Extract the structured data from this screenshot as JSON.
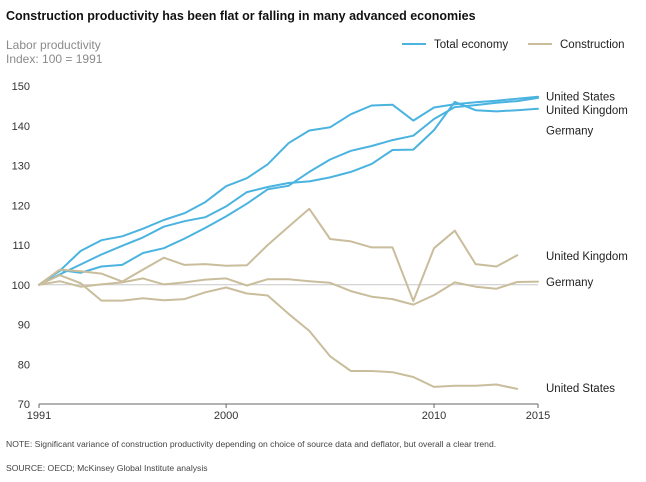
{
  "title": "Construction productivity has been flat or falling in many advanced economies",
  "y_axis_label": "Labor productivity",
  "y_axis_sublabel": "Index: 100 = 1991",
  "note": "NOTE: Significant variance of construction productivity depending on choice of source data and deflator, but overall a clear trend.",
  "source": "SOURCE: OECD; McKinsey Global Institute analysis",
  "colors": {
    "total_economy": "#4ab3e0",
    "construction": "#c9bd9c",
    "baseline": "#c8c8c8",
    "axis": "#666666"
  },
  "chart_data": {
    "type": "line",
    "xlim": [
      1991,
      2015
    ],
    "ylim": [
      70,
      150
    ],
    "x_ticks": [
      1991,
      2000,
      2010,
      2015
    ],
    "y_ticks": [
      70,
      80,
      90,
      100,
      110,
      120,
      130,
      140,
      150
    ],
    "legend": [
      {
        "label": "Total economy",
        "group": "total_economy"
      },
      {
        "label": "Construction",
        "group": "construction"
      }
    ],
    "legend_position": "top-right",
    "series": [
      {
        "name": "United States",
        "group": "total_economy",
        "x": [
          1991,
          1992,
          1993,
          1994,
          1995,
          1996,
          1997,
          1998,
          1999,
          2000,
          2001,
          2002,
          2003,
          2004,
          2005,
          2006,
          2007,
          2008,
          2009,
          2010,
          2011,
          2012,
          2013,
          2014,
          2015
        ],
        "y": [
          100,
          103.5,
          108.5,
          111.2,
          112.2,
          114.1,
          116.3,
          118.0,
          120.8,
          124.8,
          126.8,
          130.3,
          135.6,
          138.8,
          139.6,
          142.9,
          145.1,
          145.3,
          141.3,
          144.6,
          145.4,
          145.9,
          146.3,
          146.8,
          147.3
        ]
      },
      {
        "name": "United Kingdom",
        "group": "total_economy",
        "x": [
          1991,
          1992,
          1993,
          1994,
          1995,
          1996,
          1997,
          1998,
          1999,
          2000,
          2001,
          2002,
          2003,
          2004,
          2005,
          2006,
          2007,
          2008,
          2009,
          2010,
          2011,
          2012,
          2013,
          2014,
          2015
        ],
        "y": [
          100,
          102.6,
          105.1,
          107.6,
          109.8,
          111.9,
          114.6,
          116.0,
          117.0,
          119.7,
          123.3,
          124.6,
          125.6,
          126.0,
          127.0,
          128.4,
          130.4,
          133.9,
          134.0,
          138.9,
          146.0,
          143.9,
          143.6,
          143.9,
          144.3
        ]
      },
      {
        "name": "Germany",
        "group": "total_economy",
        "x": [
          1991,
          1992,
          1993,
          1994,
          1995,
          1996,
          1997,
          1998,
          1999,
          2000,
          2001,
          2002,
          2003,
          2004,
          2005,
          2006,
          2007,
          2008,
          2009,
          2010,
          2011,
          2012,
          2013,
          2014,
          2015
        ],
        "y": [
          100,
          103.7,
          103.0,
          104.6,
          105.0,
          108.0,
          109.2,
          111.6,
          114.3,
          117.2,
          120.4,
          124.0,
          124.9,
          128.4,
          131.5,
          133.7,
          134.9,
          136.4,
          137.5,
          141.7,
          144.7,
          145.2,
          145.8,
          146.2,
          147.0
        ]
      },
      {
        "name": "United Kingdom",
        "group": "construction",
        "x": [
          1991,
          1992,
          1993,
          1994,
          1995,
          1996,
          1997,
          1998,
          1999,
          2000,
          2001,
          2002,
          2003,
          2004,
          2005,
          2006,
          2007,
          2008,
          2009,
          2010,
          2011,
          2012,
          2013,
          2014
        ],
        "y": [
          100,
          103.8,
          103.4,
          102.8,
          100.8,
          103.8,
          106.8,
          105.0,
          105.2,
          104.8,
          104.9,
          110.0,
          114.6,
          119.1,
          111.5,
          110.9,
          109.4,
          109.4,
          95.9,
          109.2,
          113.6,
          105.2,
          104.6,
          107.4
        ]
      },
      {
        "name": "Germany",
        "group": "construction",
        "x": [
          1991,
          1992,
          1993,
          1994,
          1995,
          1996,
          1997,
          1998,
          1999,
          2000,
          2001,
          2002,
          2003,
          2004,
          2005,
          2006,
          2007,
          2008,
          2009,
          2010,
          2011,
          2012,
          2013,
          2014,
          2015
        ],
        "y": [
          100,
          100.9,
          99.5,
          100.1,
          100.6,
          101.6,
          100.1,
          100.6,
          101.3,
          101.6,
          99.8,
          101.4,
          101.4,
          100.9,
          100.5,
          98.4,
          97.0,
          96.4,
          95.0,
          97.4,
          100.6,
          99.5,
          99.0,
          100.7,
          100.8
        ]
      },
      {
        "name": "United States",
        "group": "construction",
        "x": [
          1991,
          1992,
          1993,
          1994,
          1995,
          1996,
          1997,
          1998,
          1999,
          2000,
          2001,
          2002,
          2003,
          2004,
          2005,
          2006,
          2007,
          2008,
          2009,
          2010,
          2011,
          2012,
          2013,
          2014
        ],
        "y": [
          100,
          102.4,
          100.4,
          96.0,
          96.0,
          96.6,
          96.1,
          96.4,
          98.1,
          99.3,
          97.8,
          97.3,
          92.7,
          88.4,
          82.0,
          78.3,
          78.3,
          78.0,
          76.8,
          74.3,
          74.6,
          74.6,
          74.9,
          73.8
        ]
      }
    ],
    "end_labels": [
      {
        "text": "United States",
        "y": 147.3
      },
      {
        "text": "United Kingdom",
        "y": 143.9
      },
      {
        "text": "Germany",
        "y": 138.8
      },
      {
        "text": "United Kingdom",
        "y": 107.2
      },
      {
        "text": "Germany",
        "y": 100.7
      },
      {
        "text": "United States",
        "y": 74.0
      }
    ]
  }
}
